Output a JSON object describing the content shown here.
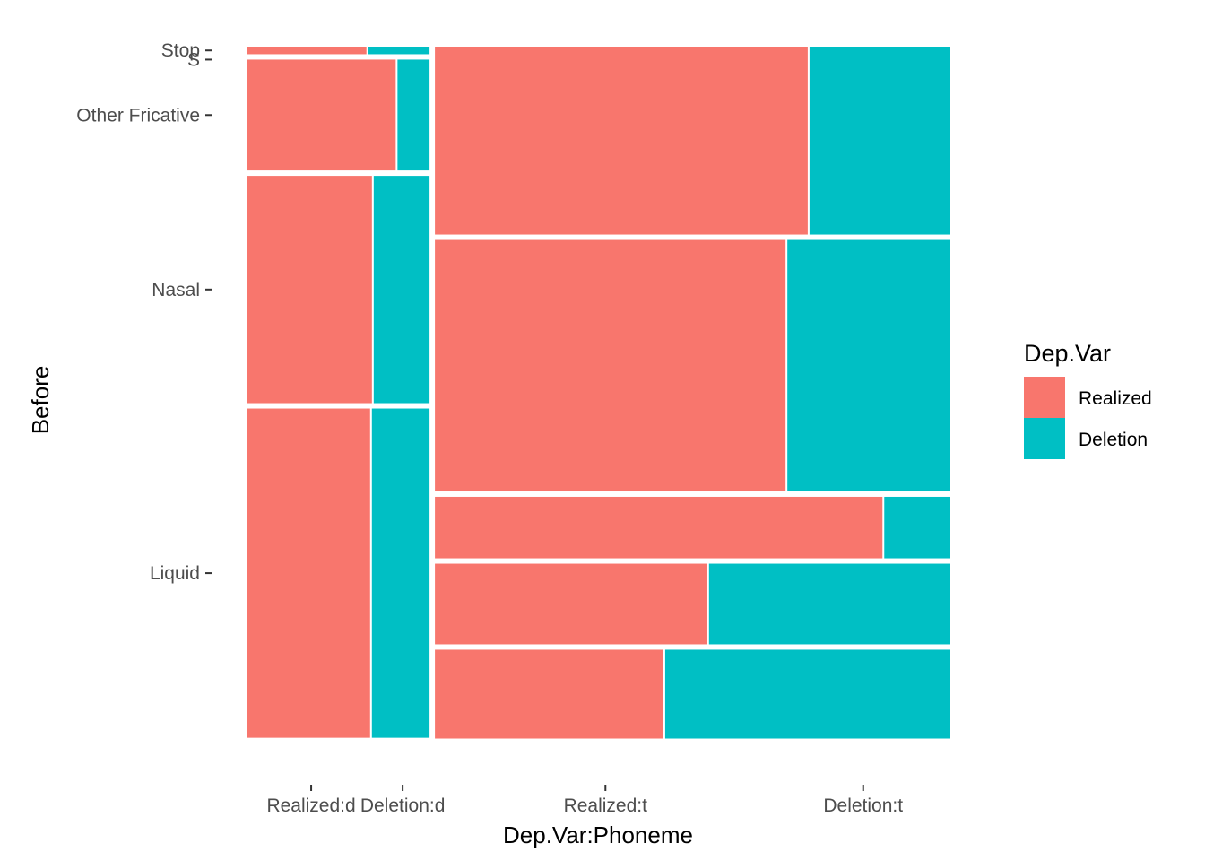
{
  "chart_data": {
    "type": "mosaic",
    "title": "",
    "xlabel": "Dep.Var:Phoneme",
    "ylabel": "Before",
    "x_tick_labels": [
      "Realized:d",
      "Deletion:d",
      "Realized:t",
      "Deletion:t"
    ],
    "y_tick_labels": [
      "Stop",
      "S",
      "Other Fricative",
      "Nasal",
      "Liquid"
    ],
    "legend": {
      "title": "Dep.Var",
      "position": "right",
      "entries": [
        {
          "name": "Realized",
          "color": "#F8766D"
        },
        {
          "name": "Deletion",
          "color": "#00BFC4"
        }
      ]
    },
    "columns": [
      {
        "phoneme": "d",
        "width_share": 0.262,
        "cells": [
          {
            "before": "Stop",
            "height_share": 0.011,
            "realized": 0.66,
            "deletion": 0.34
          },
          {
            "before": "S",
            "height_share": 0.0,
            "realized": 0.0,
            "deletion": 0.0
          },
          {
            "before": "Other Fricative",
            "height_share": 0.161,
            "realized": 0.82,
            "deletion": 0.18
          },
          {
            "before": "Nasal",
            "height_share": 0.33,
            "realized": 0.69,
            "deletion": 0.31
          },
          {
            "before": "Liquid",
            "height_share": 0.478,
            "realized": 0.68,
            "deletion": 0.32
          }
        ]
      },
      {
        "phoneme": "t",
        "width_share": 0.738,
        "cells": [
          {
            "before": "Stop",
            "height_share": 0.275,
            "realized": 0.725,
            "deletion": 0.275
          },
          {
            "before": "S",
            "height_share": 0.368,
            "realized": 0.682,
            "deletion": 0.318
          },
          {
            "before": "Other Fricative",
            "height_share": 0.09,
            "realized": 0.87,
            "deletion": 0.13
          },
          {
            "before": "Nasal",
            "height_share": 0.118,
            "realized": 0.53,
            "deletion": 0.47
          },
          {
            "before": "Liquid",
            "height_share": 0.13,
            "realized": 0.445,
            "deletion": 0.555
          }
        ]
      }
    ],
    "colors": {
      "realized": "#F8766D",
      "deletion": "#00BFC4",
      "tick": "#333333"
    }
  }
}
